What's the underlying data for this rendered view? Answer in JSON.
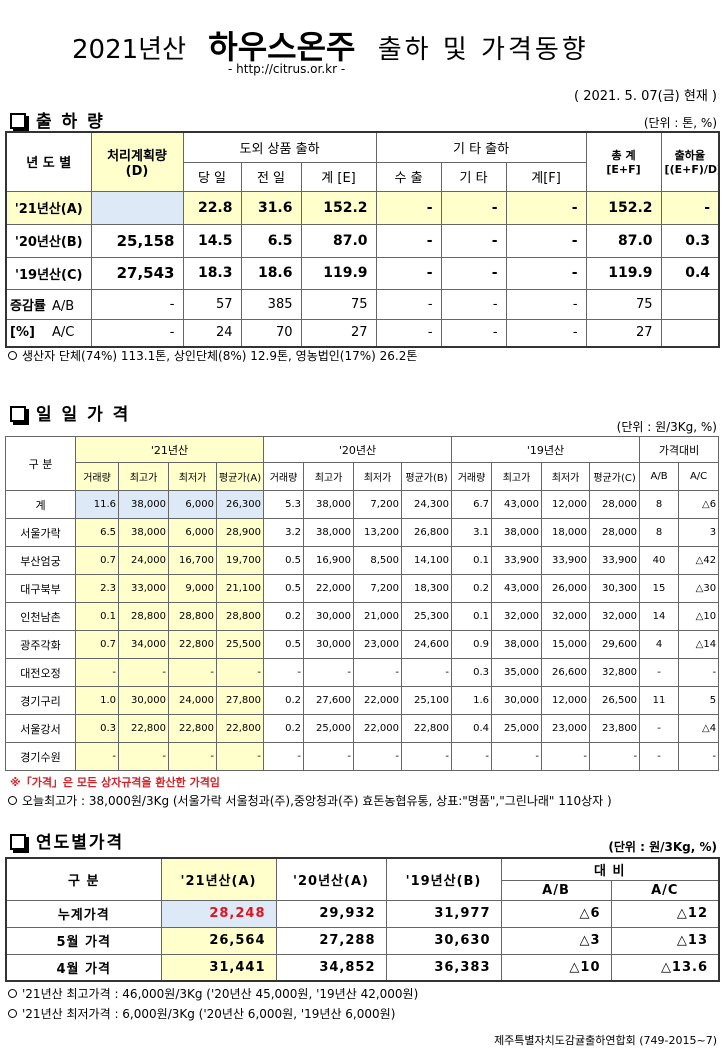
{
  "header": {
    "title_year": "2021년산",
    "title_main": "하우스온주",
    "title_sub": "출하 및 가격동향",
    "url": "- http://citrus.or.kr -",
    "date": "( 2021. 5. 07(금) 현재 )"
  },
  "shipment": {
    "title": "출 하 량",
    "unit": "(단위 : 톤, %)",
    "head": {
      "year": "년 도 별",
      "plan": "처리계획량\n(D)",
      "inland": "도외 상품 출하",
      "other": "기 타 출하",
      "total": "총  계\n[E+F]",
      "rate": "출하율\n[(E+F)/D]",
      "sub": [
        "당 일",
        "전 일",
        "계 [E]",
        "수 출",
        "기 타",
        "계[F]"
      ]
    },
    "rows": [
      {
        "label": "'21년산(A)",
        "cells": [
          null,
          "22.8",
          "31.6",
          "152.2",
          "-",
          "-",
          "-",
          "152.2",
          "-"
        ]
      },
      {
        "label": "'20년산(B)",
        "cells": [
          "25,158",
          "14.5",
          "6.5",
          "87.0",
          "-",
          "-",
          "-",
          "87.0",
          "0.3"
        ]
      },
      {
        "label": "'19년산(C)",
        "cells": [
          "27,543",
          "18.3",
          "18.6",
          "119.9",
          "-",
          "-",
          "-",
          "119.9",
          "0.4"
        ]
      },
      {
        "group": "증감률",
        "label": "A/B",
        "cells": [
          "-",
          "57",
          "385",
          "75",
          "-",
          "-",
          "-",
          "75",
          null
        ]
      },
      {
        "group": "[%]",
        "label": "A/C",
        "cells": [
          "-",
          "24",
          "70",
          "27",
          "-",
          "-",
          "-",
          "27",
          null
        ]
      }
    ],
    "notes": [
      "생산자 단체(74%) 113.1톤,   상인단체(8%) 12.9톤,  영농법인(17%) 26.2톤"
    ]
  },
  "daily": {
    "title": "일 일 가 격",
    "unit": "(단위 : 원/3Kg, %)",
    "head": {
      "label": "구  분",
      "groups": [
        "'21년산",
        "'20년산",
        "'19년산",
        "가격대비"
      ],
      "sub": [
        "거래량",
        "최고가",
        "최저가",
        "평균가(A)",
        "거래량",
        "최고가",
        "최저가",
        "평균가(B)",
        "거래량",
        "최고가",
        "최저가",
        "평균가(C)",
        "A/B",
        "A/C"
      ]
    },
    "rows": [
      {
        "label": "계",
        "cells": [
          "11.6",
          "38,000",
          "6,000",
          "26,300",
          "5.3",
          "38,000",
          "7,200",
          "24,300",
          "6.7",
          "43,000",
          "12,000",
          "28,000",
          "8",
          "△6"
        ]
      },
      {
        "label": "서울가락",
        "cells": [
          "6.5",
          "38,000",
          "6,000",
          "28,900",
          "3.2",
          "38,000",
          "13,200",
          "26,800",
          "3.1",
          "38,000",
          "18,000",
          "28,000",
          "8",
          "3"
        ]
      },
      {
        "label": "부산엄궁",
        "cells": [
          "0.7",
          "24,000",
          "16,700",
          "19,700",
          "0.5",
          "16,900",
          "8,500",
          "14,100",
          "0.1",
          "33,900",
          "33,900",
          "33,900",
          "40",
          "△42"
        ]
      },
      {
        "label": "대구북부",
        "cells": [
          "2.3",
          "33,000",
          "9,000",
          "21,100",
          "0.5",
          "22,000",
          "7,200",
          "18,300",
          "0.2",
          "43,000",
          "26,000",
          "30,300",
          "15",
          "△30"
        ]
      },
      {
        "label": "인천남촌",
        "cells": [
          "0.1",
          "28,800",
          "28,800",
          "28,800",
          "0.2",
          "30,000",
          "21,000",
          "25,300",
          "0.1",
          "32,000",
          "32,000",
          "32,000",
          "14",
          "△10"
        ]
      },
      {
        "label": "광주각화",
        "cells": [
          "0.7",
          "34,000",
          "22,800",
          "25,500",
          "0.5",
          "30,000",
          "23,000",
          "24,600",
          "0.9",
          "38,000",
          "15,000",
          "29,600",
          "4",
          "△14"
        ]
      },
      {
        "label": "대전오정",
        "cells": [
          "-",
          "-",
          "-",
          "-",
          "-",
          "-",
          "-",
          "-",
          "0.3",
          "35,000",
          "26,600",
          "32,800",
          "-",
          "-"
        ]
      },
      {
        "label": "경기구리",
        "cells": [
          "1.0",
          "30,000",
          "24,000",
          "27,800",
          "0.2",
          "27,600",
          "22,000",
          "25,100",
          "1.6",
          "30,000",
          "12,000",
          "26,500",
          "11",
          "5"
        ]
      },
      {
        "label": "서울강서",
        "cells": [
          "0.3",
          "22,800",
          "22,800",
          "22,800",
          "0.2",
          "25,000",
          "22,000",
          "22,800",
          "0.4",
          "25,000",
          "23,000",
          "23,800",
          "-",
          "△4"
        ]
      },
      {
        "label": "경기수원",
        "cells": [
          "-",
          "-",
          "-",
          "-",
          "-",
          "-",
          "-",
          "-",
          "-",
          "-",
          "-",
          "-",
          "-",
          "-"
        ]
      }
    ],
    "remark": "※「가격」은 모든 상자규격을 환산한 가격임",
    "notes": [
      "오늘최고가 : 38,000원/3Kg (서울가락  서울청과(주),중앙청과(주)  효돈농협유통,  상표:\"명품\",\"그린나래\"  110상자 )"
    ]
  },
  "yearly": {
    "title": "연도별가격",
    "unit": "(단위 : 원/3Kg, %)",
    "head": {
      "label": "구      분",
      "cols": [
        "'21년산(A)",
        "'20년산(A)",
        "'19년산(B)"
      ],
      "compare": "대      비",
      "sub": [
        "A/B",
        "A/C"
      ]
    },
    "rows": [
      {
        "label": "누계가격",
        "cells": [
          "28,248",
          "29,932",
          "31,977",
          "△6",
          "△12"
        ]
      },
      {
        "label": "5월 가격",
        "cells": [
          "26,564",
          "27,288",
          "30,630",
          "△3",
          "△13"
        ]
      },
      {
        "label": "4월 가격",
        "cells": [
          "31,441",
          "34,852",
          "36,383",
          "△10",
          "△13.6"
        ]
      }
    ],
    "notes": [
      "'21년산 최고가격 : 46,000원/3Kg ('20년산 45,000원, '19년산 42,000원)",
      "'21년산 최저가격 :  6,000원/3Kg ('20년산  6,000원, '19년산  6,000원)"
    ]
  },
  "footer": "제주특별자치도감귤출하연합회 (749-2015~7)"
}
